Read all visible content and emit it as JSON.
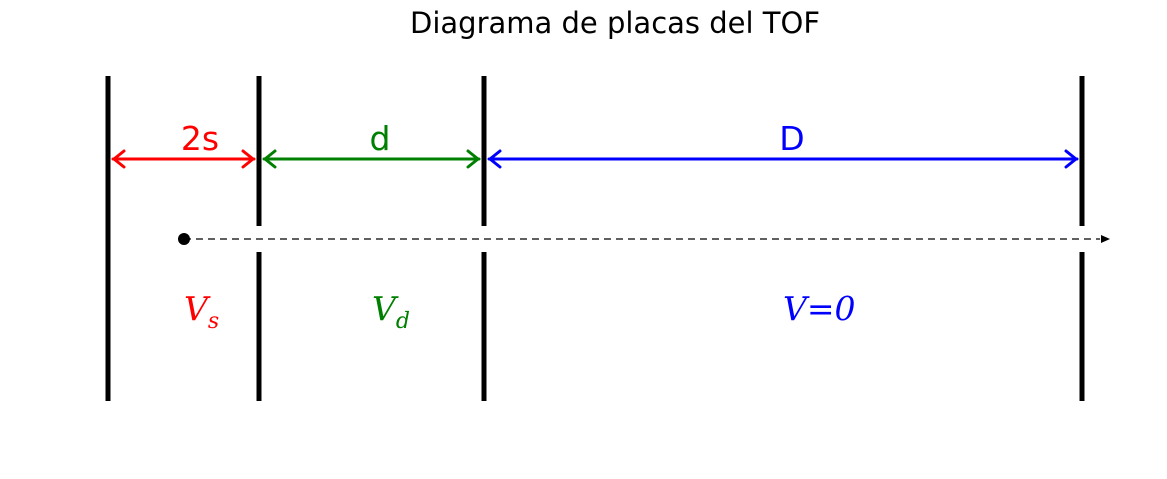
{
  "title": "Diagrama de placas del TOF",
  "dimensions": [
    {
      "label": "2s",
      "color": "#ff0000"
    },
    {
      "label": "d",
      "color": "#008000"
    },
    {
      "label": "D",
      "color": "#0000ff"
    }
  ],
  "regions": [
    {
      "symbol": "V",
      "subscript": "s",
      "color": "#ff0000"
    },
    {
      "symbol": "V",
      "subscript": "d",
      "color": "#008000"
    },
    {
      "symbol": "V",
      "subscript": "",
      "suffix": "=0",
      "color": "#0000ff"
    }
  ],
  "plate_color": "#000000"
}
